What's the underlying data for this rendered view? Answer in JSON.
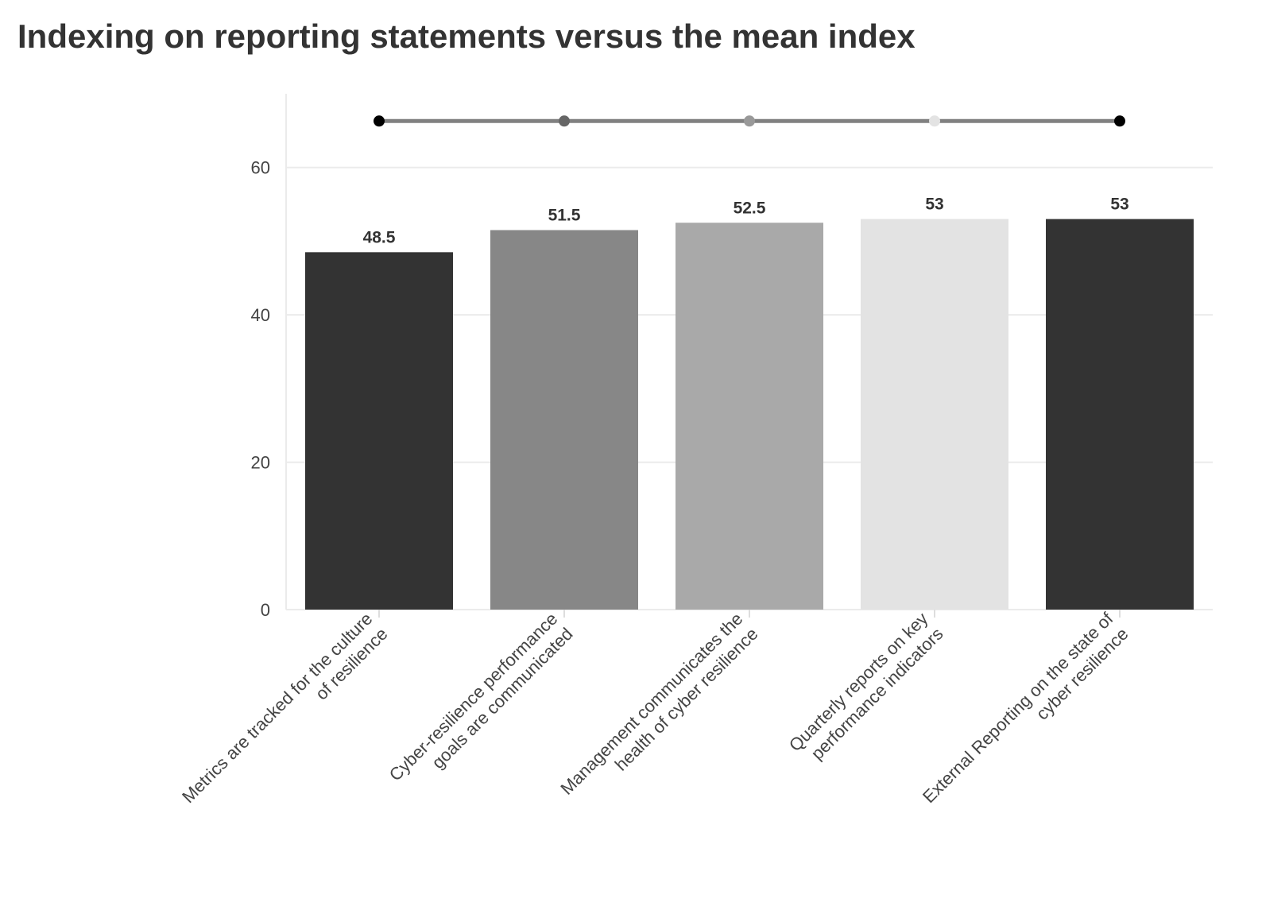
{
  "chart_data": {
    "type": "bar",
    "title": "Indexing on reporting statements versus the mean index",
    "xlabel": "",
    "ylabel": "",
    "categories": [
      "Metrics are tracked for the culture of resilience",
      "Cyber-resilience performance goals are communicated",
      "Management communicates the health of cyber resilience",
      "Quarterly reports on key performance indicators",
      "External Reporting on the state of cyber resilience"
    ],
    "category_lines": [
      [
        "Metrics are tracked for the culture",
        "of resilience"
      ],
      [
        "Cyber-resilience performance",
        "goals are communicated"
      ],
      [
        "Management communicates the",
        "health of cyber resilience"
      ],
      [
        "Quarterly reports on key",
        "performance indicators"
      ],
      [
        "External Reporting on the state of",
        "cyber resilience"
      ]
    ],
    "values": [
      48.5,
      51.5,
      52.5,
      53,
      53
    ],
    "data_labels": [
      "48.5",
      "51.5",
      "52.5",
      "53",
      "53"
    ],
    "mean_line": {
      "values": [
        66.3,
        66.3,
        66.3,
        66.3,
        66.3
      ],
      "line_color": "#808080",
      "point_colors": [
        "#000000",
        "#666666",
        "#999999",
        "#e3e3e3",
        "#000000"
      ]
    },
    "bar_colors": [
      "#333333",
      "#878787",
      "#a9a9a9",
      "#e3e3e3",
      "#333333"
    ],
    "ylim": [
      0,
      70
    ],
    "yticks": [
      0,
      20,
      40,
      60
    ],
    "grid": true,
    "legend": "none"
  }
}
